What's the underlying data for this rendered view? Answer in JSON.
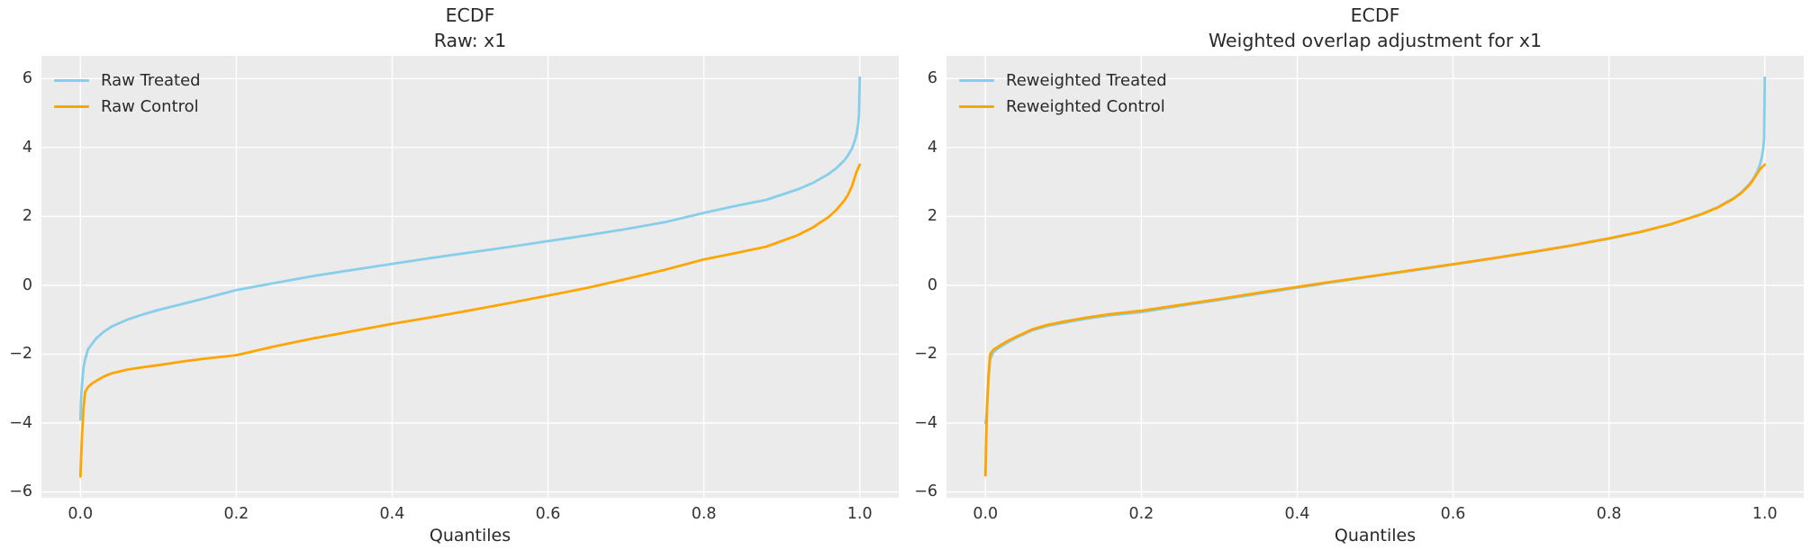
{
  "figure": {
    "background": "#ffffff",
    "panel_background": "#ebebeb",
    "grid_color": "#ffffff",
    "title_color": "#2a2a2a",
    "tick_label_color": "#333333",
    "treated_color": "#87CEEB",
    "control_color": "#FFA500"
  },
  "chart_data": [
    {
      "type": "line",
      "title": "ECDF",
      "subtitle": "Raw: x1",
      "xlabel": "Quantiles",
      "xlim": [
        -0.05,
        1.05
      ],
      "ylim": [
        -6.17,
        6.66
      ],
      "grid": true,
      "legend_position": "upper left",
      "xticks": [
        0.0,
        0.2,
        0.4,
        0.6,
        0.8,
        1.0
      ],
      "xtick_labels": [
        "0.0",
        "0.2",
        "0.4",
        "0.6",
        "0.8",
        "1.0"
      ],
      "yticks": [
        6,
        4,
        2,
        0,
        -2,
        -4,
        -6
      ],
      "ytick_labels": [
        "6",
        "4",
        "2",
        "0",
        "−2",
        "−4",
        "−6"
      ],
      "x": [
        0,
        0.001,
        0.002,
        0.004,
        0.006,
        0.01,
        0.015,
        0.02,
        0.03,
        0.04,
        0.06,
        0.08,
        0.1,
        0.13,
        0.16,
        0.2,
        0.25,
        0.3,
        0.35,
        0.4,
        0.45,
        0.5,
        0.55,
        0.6,
        0.65,
        0.7,
        0.75,
        0.8,
        0.84,
        0.88,
        0.92,
        0.94,
        0.96,
        0.97,
        0.98,
        0.985,
        0.99,
        0.994,
        0.996,
        0.998,
        0.999,
        1.0
      ],
      "series": [
        {
          "name": "Raw Treated",
          "color": "#87CEEB",
          "values": [
            -3.9,
            -3.3,
            -2.9,
            -2.4,
            -2.15,
            -1.85,
            -1.7,
            -1.55,
            -1.35,
            -1.2,
            -1.0,
            -0.85,
            -0.72,
            -0.55,
            -0.38,
            -0.14,
            0.07,
            0.27,
            0.45,
            0.62,
            0.79,
            0.95,
            1.11,
            1.28,
            1.45,
            1.63,
            1.83,
            2.1,
            2.3,
            2.48,
            2.78,
            2.97,
            3.23,
            3.4,
            3.62,
            3.77,
            3.97,
            4.22,
            4.4,
            4.69,
            4.97,
            6.03
          ]
        },
        {
          "name": "Raw Control",
          "color": "#FFA500",
          "values": [
            -5.55,
            -5.0,
            -4.4,
            -3.6,
            -3.1,
            -2.95,
            -2.85,
            -2.78,
            -2.65,
            -2.56,
            -2.45,
            -2.38,
            -2.32,
            -2.22,
            -2.13,
            -2.03,
            -1.77,
            -1.54,
            -1.33,
            -1.12,
            -0.93,
            -0.73,
            -0.52,
            -0.3,
            -0.08,
            0.18,
            0.45,
            0.75,
            0.93,
            1.12,
            1.45,
            1.68,
            1.98,
            2.19,
            2.45,
            2.63,
            2.88,
            3.16,
            3.3,
            3.4,
            3.45,
            3.5
          ]
        }
      ]
    },
    {
      "type": "line",
      "title": "ECDF",
      "subtitle": "Weighted overlap adjustment for x1",
      "xlabel": "Quantiles",
      "xlim": [
        -0.05,
        1.05
      ],
      "ylim": [
        -6.17,
        6.66
      ],
      "grid": true,
      "legend_position": "upper left",
      "xticks": [
        0.0,
        0.2,
        0.4,
        0.6,
        0.8,
        1.0
      ],
      "xtick_labels": [
        "0.0",
        "0.2",
        "0.4",
        "0.6",
        "0.8",
        "1.0"
      ],
      "yticks": [
        6,
        4,
        2,
        0,
        -2,
        -4,
        -6
      ],
      "ytick_labels": [
        "6",
        "4",
        "2",
        "0",
        "−2",
        "−4",
        "−6"
      ],
      "x": [
        0,
        0.001,
        0.002,
        0.004,
        0.006,
        0.01,
        0.015,
        0.02,
        0.03,
        0.04,
        0.06,
        0.08,
        0.1,
        0.13,
        0.16,
        0.2,
        0.25,
        0.3,
        0.35,
        0.4,
        0.45,
        0.5,
        0.55,
        0.6,
        0.65,
        0.7,
        0.75,
        0.8,
        0.84,
        0.88,
        0.92,
        0.94,
        0.96,
        0.97,
        0.98,
        0.985,
        0.99,
        0.994,
        0.996,
        0.998,
        0.999,
        1.0
      ],
      "series": [
        {
          "name": "Reweighted Treated",
          "color": "#87CEEB",
          "values": [
            -4.0,
            -3.9,
            -3.5,
            -2.75,
            -2.15,
            -1.95,
            -1.85,
            -1.78,
            -1.64,
            -1.52,
            -1.31,
            -1.18,
            -1.09,
            -0.97,
            -0.87,
            -0.78,
            -0.6,
            -0.43,
            -0.25,
            -0.07,
            0.1,
            0.27,
            0.43,
            0.6,
            0.77,
            0.95,
            1.14,
            1.35,
            1.54,
            1.77,
            2.08,
            2.27,
            2.53,
            2.7,
            2.93,
            3.08,
            3.28,
            3.52,
            3.7,
            3.98,
            4.25,
            6.03
          ]
        },
        {
          "name": "Reweighted Control",
          "color": "#FFA500",
          "values": [
            -5.52,
            -4.5,
            -3.6,
            -2.6,
            -2.0,
            -1.88,
            -1.8,
            -1.73,
            -1.6,
            -1.49,
            -1.28,
            -1.15,
            -1.06,
            -0.94,
            -0.84,
            -0.74,
            -0.57,
            -0.4,
            -0.22,
            -0.05,
            0.12,
            0.28,
            0.45,
            0.61,
            0.78,
            0.96,
            1.15,
            1.36,
            1.55,
            1.78,
            2.07,
            2.26,
            2.51,
            2.68,
            2.9,
            3.05,
            3.24,
            3.37,
            3.42,
            3.46,
            3.48,
            3.5
          ]
        }
      ]
    }
  ]
}
